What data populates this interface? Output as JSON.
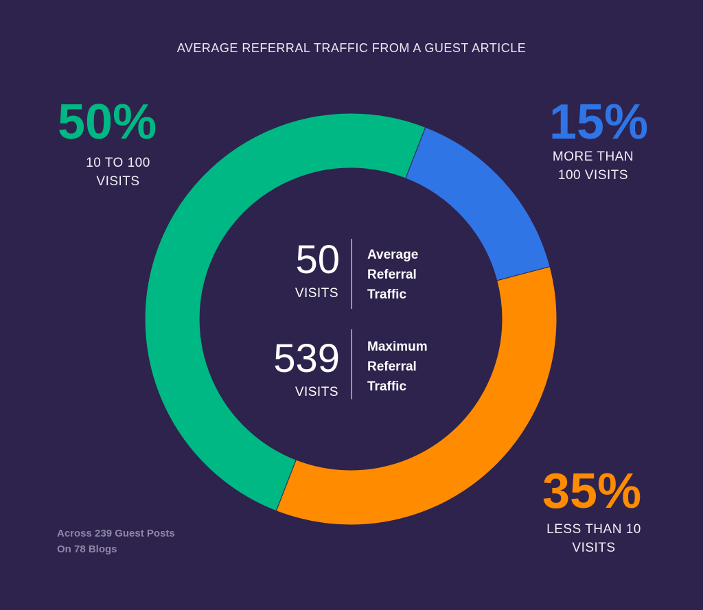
{
  "colors": {
    "background": "#2e234d",
    "green": "#00b884",
    "blue": "#2f75e6",
    "orange": "#ff8c00"
  },
  "chart_data": {
    "type": "pie",
    "title": "AVERAGE REFERRAL TRAFFIC FROM A GUEST ARTICLE",
    "slices": [
      {
        "value": 50,
        "pct_label": "50%",
        "label_line1": "10 TO 100",
        "label_line2": "VISITS",
        "color": "#00b884"
      },
      {
        "value": 15,
        "pct_label": "15%",
        "label_line1": "MORE THAN",
        "label_line2": "100 VISITS",
        "color": "#2f75e6"
      },
      {
        "value": 35,
        "pct_label": "35%",
        "label_line1": "LESS THAN 10",
        "label_line2": "VISITS",
        "color": "#ff8c00"
      }
    ],
    "center": {
      "average": {
        "value": "50",
        "unit": "VISITS",
        "line1": "Average",
        "line2": "Referral",
        "line3": "Traffic"
      },
      "maximum": {
        "value": "539",
        "unit": "VISITS",
        "line1": "Maximum",
        "line2": "Referral",
        "line3": "Traffic"
      }
    },
    "footnote": {
      "line1": "Across 239 Guest Posts",
      "line2": "On 78 Blogs"
    }
  }
}
